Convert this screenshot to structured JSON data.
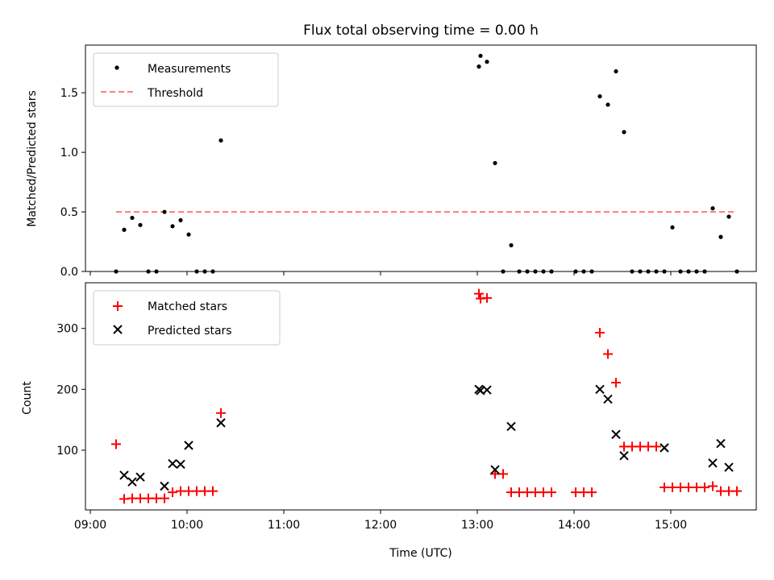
{
  "colors": {
    "measurements": "#000000",
    "threshold": "#ff7f7f",
    "matched": "#ff0000",
    "predicted": "#000000",
    "axes": "#000000",
    "background": "#ffffff"
  },
  "chart_data": [
    {
      "type": "scatter",
      "title": "Flux total observing time = 0.00 h",
      "xlabel": "",
      "ylabel": "Matched/Predicted stars",
      "x_is_time": true,
      "xlim": [
        "08:57",
        "15:53"
      ],
      "ylim": [
        0,
        1.9
      ],
      "yticks": [
        0.0,
        0.5,
        1.0,
        1.5
      ],
      "ytick_labels": [
        "0.0",
        "0.5",
        "1.0",
        "1.5"
      ],
      "grid": false,
      "legend_position": "top-left",
      "series": [
        {
          "name": "Measurements",
          "marker": "dot",
          "points": [
            [
              "09:16",
              0.0
            ],
            [
              "09:21",
              0.35
            ],
            [
              "09:26",
              0.45
            ],
            [
              "09:31",
              0.39
            ],
            [
              "09:36",
              0.0
            ],
            [
              "09:41",
              0.0
            ],
            [
              "09:46",
              0.5
            ],
            [
              "09:51",
              0.38
            ],
            [
              "09:56",
              0.43
            ],
            [
              "10:01",
              0.31
            ],
            [
              "10:06",
              0.0
            ],
            [
              "10:11",
              0.0
            ],
            [
              "10:16",
              0.0
            ],
            [
              "10:21",
              1.1
            ],
            [
              "13:01",
              1.72
            ],
            [
              "13:02",
              1.81
            ],
            [
              "13:06",
              1.76
            ],
            [
              "13:11",
              0.91
            ],
            [
              "13:16",
              0.0
            ],
            [
              "13:21",
              0.22
            ],
            [
              "13:26",
              0.0
            ],
            [
              "13:31",
              0.0
            ],
            [
              "13:36",
              0.0
            ],
            [
              "13:41",
              0.0
            ],
            [
              "13:46",
              0.0
            ],
            [
              "14:01",
              0.0
            ],
            [
              "14:06",
              0.0
            ],
            [
              "14:11",
              0.0
            ],
            [
              "14:16",
              1.47
            ],
            [
              "14:21",
              1.4
            ],
            [
              "14:26",
              1.68
            ],
            [
              "14:31",
              1.17
            ],
            [
              "14:36",
              0.0
            ],
            [
              "14:41",
              0.0
            ],
            [
              "14:46",
              0.0
            ],
            [
              "14:51",
              0.0
            ],
            [
              "14:56",
              0.0
            ],
            [
              "15:01",
              0.37
            ],
            [
              "15:06",
              0.0
            ],
            [
              "15:11",
              0.0
            ],
            [
              "15:16",
              0.0
            ],
            [
              "15:21",
              0.0
            ],
            [
              "15:26",
              0.53
            ],
            [
              "15:31",
              0.29
            ],
            [
              "15:36",
              0.46
            ],
            [
              "15:41",
              0.0
            ]
          ]
        },
        {
          "name": "Threshold",
          "marker": "dashed-line",
          "points": [
            [
              "09:16",
              0.5
            ],
            [
              "15:41",
              0.5
            ]
          ]
        }
      ]
    },
    {
      "type": "scatter",
      "title": "",
      "xlabel": "Time (UTC)",
      "ylabel": "Count",
      "x_is_time": true,
      "xlim": [
        "08:57",
        "15:53"
      ],
      "ylim": [
        2,
        375
      ],
      "yticks": [
        100,
        200,
        300
      ],
      "ytick_labels": [
        "100",
        "200",
        "300"
      ],
      "xticks": [
        "09:00",
        "10:00",
        "11:00",
        "12:00",
        "13:00",
        "14:00",
        "15:00"
      ],
      "xtick_labels": [
        "09:00",
        "10:00",
        "11:00",
        "12:00",
        "13:00",
        "14:00",
        "15:00"
      ],
      "grid": false,
      "legend_position": "top-left",
      "series": [
        {
          "name": "Matched stars",
          "marker": "plus",
          "points": [
            [
              "09:16",
              110
            ],
            [
              "09:21",
              20
            ],
            [
              "09:26",
              21
            ],
            [
              "09:31",
              21
            ],
            [
              "09:36",
              21
            ],
            [
              "09:41",
              21
            ],
            [
              "09:46",
              21
            ],
            [
              "09:51",
              31
            ],
            [
              "09:56",
              33
            ],
            [
              "10:01",
              33
            ],
            [
              "10:06",
              33
            ],
            [
              "10:11",
              33
            ],
            [
              "10:16",
              33
            ],
            [
              "10:21",
              161
            ],
            [
              "13:01",
              357
            ],
            [
              "13:02",
              349
            ],
            [
              "13:06",
              350
            ],
            [
              "13:11",
              61
            ],
            [
              "13:16",
              61
            ],
            [
              "13:21",
              31
            ],
            [
              "13:26",
              31
            ],
            [
              "13:31",
              31
            ],
            [
              "13:36",
              31
            ],
            [
              "13:41",
              31
            ],
            [
              "13:46",
              31
            ],
            [
              "14:01",
              31
            ],
            [
              "14:06",
              31
            ],
            [
              "14:11",
              31
            ],
            [
              "14:16",
              293
            ],
            [
              "14:21",
              258
            ],
            [
              "14:26",
              211
            ],
            [
              "14:31",
              106
            ],
            [
              "14:36",
              106
            ],
            [
              "14:41",
              106
            ],
            [
              "14:46",
              106
            ],
            [
              "14:51",
              106
            ],
            [
              "14:56",
              39
            ],
            [
              "15:01",
              39
            ],
            [
              "15:06",
              39
            ],
            [
              "15:11",
              39
            ],
            [
              "15:16",
              39
            ],
            [
              "15:21",
              39
            ],
            [
              "15:26",
              41
            ],
            [
              "15:31",
              33
            ],
            [
              "15:36",
              33
            ],
            [
              "15:41",
              33
            ]
          ]
        },
        {
          "name": "Predicted stars",
          "marker": "x",
          "points": [
            [
              "09:21",
              59
            ],
            [
              "09:26",
              48
            ],
            [
              "09:31",
              56
            ],
            [
              "09:46",
              41
            ],
            [
              "09:51",
              78
            ],
            [
              "09:56",
              77
            ],
            [
              "10:01",
              108
            ],
            [
              "10:21",
              145
            ],
            [
              "13:01",
              200
            ],
            [
              "13:02",
              198
            ],
            [
              "13:06",
              199
            ],
            [
              "13:11",
              68
            ],
            [
              "13:21",
              139
            ],
            [
              "14:16",
              200
            ],
            [
              "14:21",
              184
            ],
            [
              "14:26",
              126
            ],
            [
              "14:31",
              91
            ],
            [
              "14:56",
              104
            ],
            [
              "15:26",
              79
            ],
            [
              "15:31",
              111
            ],
            [
              "15:36",
              72
            ]
          ]
        }
      ]
    }
  ]
}
